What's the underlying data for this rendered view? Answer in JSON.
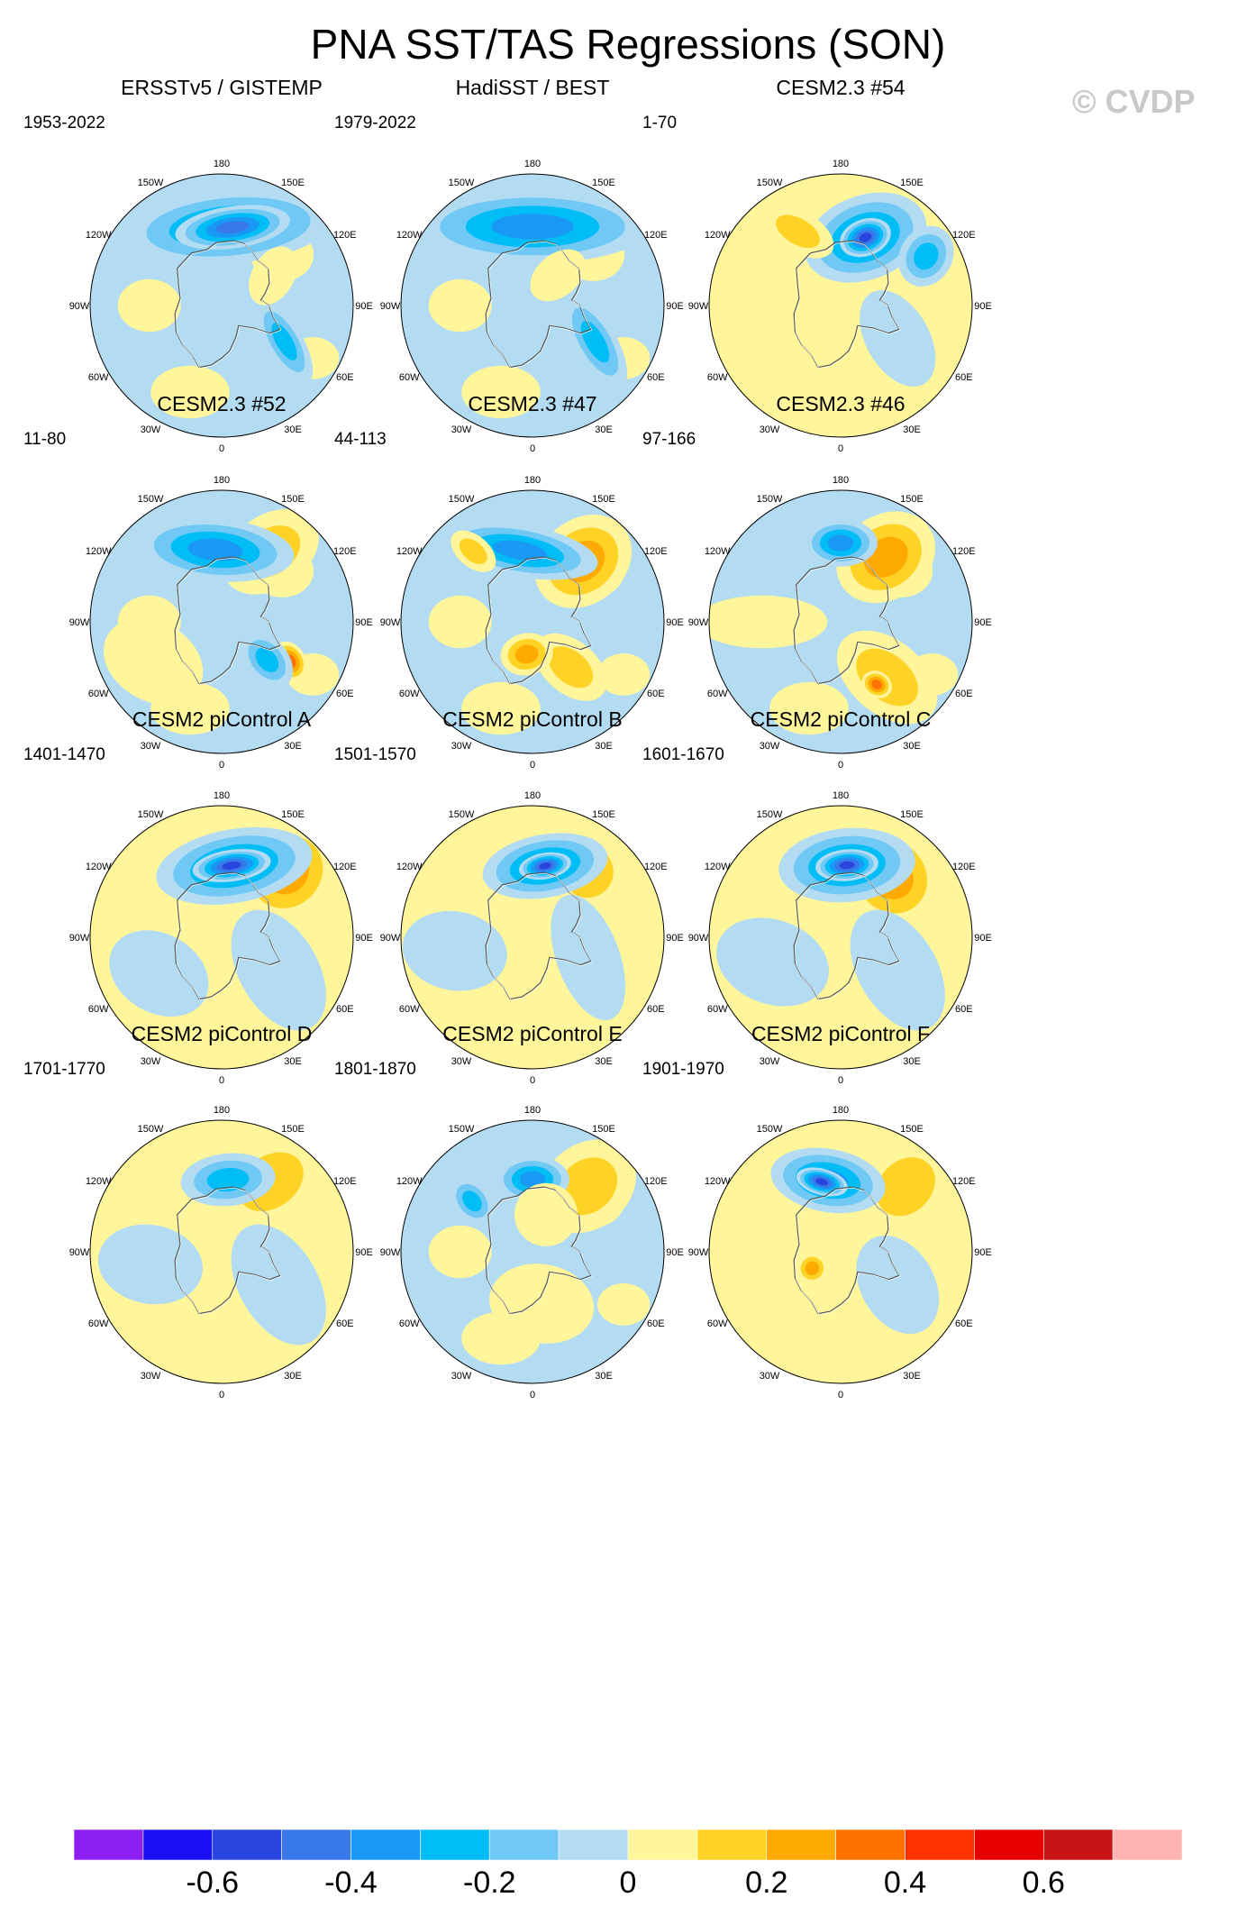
{
  "title": "PNA SST/TAS Regressions (SON)",
  "watermark": "© CVDP",
  "chart_data": {
    "type": "heatmap",
    "projection": "north-polar-stereographic",
    "title": "PNA SST/TAS Regressions (SON)",
    "longitude_labels": [
      "180",
      "150E",
      "120E",
      "90E",
      "60E",
      "30E",
      "0",
      "30W",
      "60W",
      "90W",
      "120W",
      "150W"
    ],
    "colorbar": {
      "colors": [
        "#8c20f0",
        "#1a10f5",
        "#2a45dd",
        "#3878e8",
        "#1a98f5",
        "#00bef5",
        "#70c8f5",
        "#b3dcf2",
        "#fff59a",
        "#ffd226",
        "#ffaa00",
        "#ff7200",
        "#ff3200",
        "#e60000",
        "#c81414",
        "#ffb3b3"
      ],
      "tick_values": [
        -0.6,
        -0.4,
        -0.2,
        0,
        0.2,
        0.4,
        0.6
      ],
      "tick_labels": [
        "-0.6",
        "-0.4",
        "-0.2",
        "0",
        "0.2",
        "0.4",
        "0.6"
      ]
    },
    "panels": [
      {
        "name": "ERSSTv5 / GISTEMP",
        "period": "1953-2022",
        "bg": "neg",
        "features": [
          {
            "lon": 185,
            "r": 0.6,
            "sx": 0.4,
            "sy": 0.14,
            "level": -0.4
          },
          {
            "lon": 188,
            "r": 0.6,
            "sx": 0.22,
            "sy": 0.08,
            "level": -0.5
          },
          {
            "lon": 300,
            "r": 0.55,
            "sx": 0.18,
            "sy": 0.07,
            "level": -0.3
          },
          {
            "lon": 240,
            "r": 0.45,
            "sx": 0.12,
            "sy": 0.08,
            "level": 0.1
          }
        ]
      },
      {
        "name": "HadiSST / BEST",
        "period": "1979-2022",
        "bg": "neg",
        "features": [
          {
            "lon": 180,
            "r": 0.6,
            "sx": 0.45,
            "sy": 0.14,
            "level": -0.4
          },
          {
            "lon": 300,
            "r": 0.55,
            "sx": 0.2,
            "sy": 0.08,
            "level": -0.3
          },
          {
            "lon": 220,
            "r": 0.3,
            "sx": 0.12,
            "sy": 0.08,
            "level": 0.1
          }
        ]
      },
      {
        "name": "CESM2.3 #54",
        "period": "1-70",
        "bg": "pos",
        "features": [
          {
            "lon": 200,
            "r": 0.55,
            "sx": 0.24,
            "sy": 0.16,
            "level": -0.4
          },
          {
            "lon": 200,
            "r": 0.55,
            "sx": 0.1,
            "sy": 0.07,
            "level": -0.6
          },
          {
            "lon": 150,
            "r": 0.65,
            "sx": 0.15,
            "sy": 0.08,
            "level": 0.2
          },
          {
            "lon": 240,
            "r": 0.75,
            "sx": 0.12,
            "sy": 0.1,
            "level": -0.3
          },
          {
            "lon": 300,
            "r": 0.5,
            "sx": 0.2,
            "sy": 0.12,
            "level": -0.1
          }
        ]
      },
      {
        "name": "CESM2.3 #52",
        "period": "11-80",
        "bg": "neg",
        "features": [
          {
            "lon": 215,
            "r": 0.65,
            "sx": 0.2,
            "sy": 0.14,
            "level": 0.2
          },
          {
            "lon": 175,
            "r": 0.55,
            "sx": 0.3,
            "sy": 0.12,
            "level": -0.4
          },
          {
            "lon": 300,
            "r": 0.6,
            "sx": 0.08,
            "sy": 0.06,
            "level": 0.4
          },
          {
            "lon": 310,
            "r": 0.45,
            "sx": 0.12,
            "sy": 0.08,
            "level": -0.3
          },
          {
            "lon": 60,
            "r": 0.6,
            "sx": 0.15,
            "sy": 0.2,
            "level": 0.1
          }
        ]
      },
      {
        "name": "CESM2.3 #47",
        "period": "44-113",
        "bg": "neg",
        "features": [
          {
            "lon": 220,
            "r": 0.6,
            "sx": 0.2,
            "sy": 0.16,
            "level": 0.3
          },
          {
            "lon": 170,
            "r": 0.55,
            "sx": 0.3,
            "sy": 0.1,
            "level": -0.4
          },
          {
            "lon": 140,
            "r": 0.7,
            "sx": 0.1,
            "sy": 0.06,
            "level": 0.2
          },
          {
            "lon": 320,
            "r": 0.45,
            "sx": 0.16,
            "sy": 0.1,
            "level": 0.2
          },
          {
            "lon": 10,
            "r": 0.25,
            "sx": 0.1,
            "sy": 0.08,
            "level": 0.3
          }
        ]
      },
      {
        "name": "CESM2.3 #46",
        "period": "97-166",
        "bg": "neg",
        "features": [
          {
            "lon": 215,
            "r": 0.6,
            "sx": 0.2,
            "sy": 0.16,
            "level": 0.3
          },
          {
            "lon": 180,
            "r": 0.6,
            "sx": 0.14,
            "sy": 0.09,
            "level": -0.4
          },
          {
            "lon": 320,
            "r": 0.55,
            "sx": 0.22,
            "sy": 0.14,
            "level": 0.2
          },
          {
            "lon": 330,
            "r": 0.55,
            "sx": 0.06,
            "sy": 0.05,
            "level": 0.4
          },
          {
            "lon": 90,
            "r": 0.6,
            "sx": 0.1,
            "sy": 0.25,
            "level": 0.1
          }
        ]
      },
      {
        "name": "CESM2 piControl A",
        "period": "1401-1470",
        "bg": "pos",
        "features": [
          {
            "lon": 225,
            "r": 0.7,
            "sx": 0.2,
            "sy": 0.18,
            "level": 0.3
          },
          {
            "lon": 190,
            "r": 0.55,
            "sx": 0.3,
            "sy": 0.14,
            "level": -0.4
          },
          {
            "lon": 188,
            "r": 0.55,
            "sx": 0.15,
            "sy": 0.06,
            "level": -0.6
          },
          {
            "lon": 300,
            "r": 0.5,
            "sx": 0.25,
            "sy": 0.15,
            "level": -0.1
          },
          {
            "lon": 60,
            "r": 0.55,
            "sx": 0.15,
            "sy": 0.2,
            "level": -0.1
          }
        ]
      },
      {
        "name": "CESM2 piControl B",
        "period": "1501-1570",
        "bg": "pos",
        "features": [
          {
            "lon": 220,
            "r": 0.65,
            "sx": 0.16,
            "sy": 0.16,
            "level": 0.2
          },
          {
            "lon": 190,
            "r": 0.55,
            "sx": 0.24,
            "sy": 0.12,
            "level": -0.4
          },
          {
            "lon": 190,
            "r": 0.55,
            "sx": 0.1,
            "sy": 0.05,
            "level": -0.6
          },
          {
            "lon": 290,
            "r": 0.45,
            "sx": 0.25,
            "sy": 0.12,
            "level": -0.1
          },
          {
            "lon": 80,
            "r": 0.6,
            "sx": 0.15,
            "sy": 0.2,
            "level": -0.1
          }
        ]
      },
      {
        "name": "CESM2 piControl C",
        "period": "1601-1670",
        "bg": "pos",
        "features": [
          {
            "lon": 220,
            "r": 0.6,
            "sx": 0.18,
            "sy": 0.2,
            "level": 0.3
          },
          {
            "lon": 185,
            "r": 0.55,
            "sx": 0.26,
            "sy": 0.14,
            "level": -0.4
          },
          {
            "lon": 185,
            "r": 0.55,
            "sx": 0.12,
            "sy": 0.06,
            "level": -0.6
          },
          {
            "lon": 300,
            "r": 0.5,
            "sx": 0.25,
            "sy": 0.15,
            "level": -0.1
          },
          {
            "lon": 70,
            "r": 0.55,
            "sx": 0.16,
            "sy": 0.22,
            "level": -0.1
          }
        ]
      },
      {
        "name": "CESM2 piControl D",
        "period": "1701-1770",
        "bg": "pos",
        "features": [
          {
            "lon": 215,
            "r": 0.65,
            "sx": 0.22,
            "sy": 0.16,
            "level": 0.2
          },
          {
            "lon": 185,
            "r": 0.55,
            "sx": 0.18,
            "sy": 0.1,
            "level": -0.3
          },
          {
            "lon": 300,
            "r": 0.5,
            "sx": 0.25,
            "sy": 0.15,
            "level": -0.1
          },
          {
            "lon": 80,
            "r": 0.55,
            "sx": 0.15,
            "sy": 0.2,
            "level": -0.1
          }
        ]
      },
      {
        "name": "CESM2 piControl E",
        "period": "1801-1870",
        "bg": "neg",
        "features": [
          {
            "lon": 220,
            "r": 0.65,
            "sx": 0.2,
            "sy": 0.16,
            "level": 0.2
          },
          {
            "lon": 180,
            "r": 0.55,
            "sx": 0.14,
            "sy": 0.09,
            "level": -0.4
          },
          {
            "lon": 130,
            "r": 0.6,
            "sx": 0.1,
            "sy": 0.07,
            "level": -0.3
          },
          {
            "lon": 200,
            "r": 0.3,
            "sx": 0.12,
            "sy": 0.12,
            "level": 0.1
          },
          {
            "lon": 350,
            "r": 0.4,
            "sx": 0.2,
            "sy": 0.15,
            "level": 0.1
          }
        ]
      },
      {
        "name": "CESM2 piControl F",
        "period": "1901-1970",
        "bg": "pos",
        "features": [
          {
            "lon": 225,
            "r": 0.7,
            "sx": 0.2,
            "sy": 0.16,
            "level": 0.2
          },
          {
            "lon": 170,
            "r": 0.55,
            "sx": 0.22,
            "sy": 0.12,
            "level": -0.4
          },
          {
            "lon": 165,
            "r": 0.55,
            "sx": 0.1,
            "sy": 0.05,
            "level": -0.6
          },
          {
            "lon": 60,
            "r": 0.25,
            "sx": 0.06,
            "sy": 0.06,
            "level": 0.3
          },
          {
            "lon": 300,
            "r": 0.5,
            "sx": 0.2,
            "sy": 0.14,
            "level": -0.1
          }
        ]
      }
    ]
  }
}
